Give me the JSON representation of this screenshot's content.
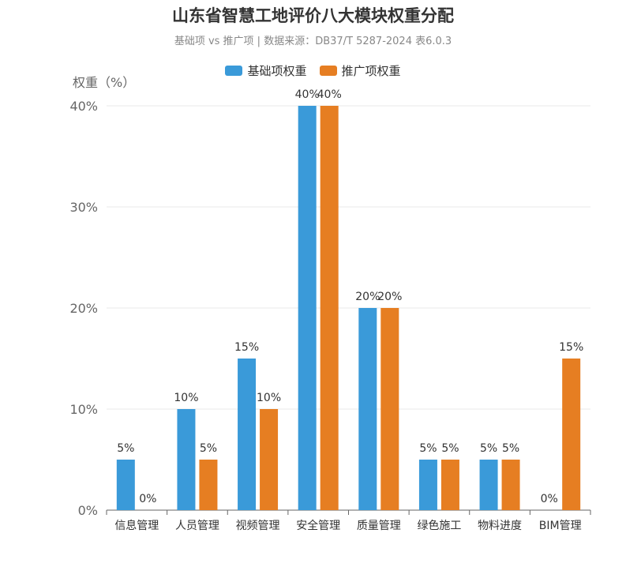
{
  "title": "山东省智慧工地评价八大模块权重分配",
  "subtitle": "基础项 vs 推广项 | 数据来源：DB37/T 5287-2024 表6.0.3",
  "legend": [
    {
      "name": "基础项权重",
      "color": "#3a9ad9"
    },
    {
      "name": "推广项权重",
      "color": "#e67e22"
    }
  ],
  "chart_data": {
    "type": "bar",
    "title": "山东省智慧工地评价八大模块权重分配",
    "ylabel": "权重（%）",
    "xlabel": "",
    "ylim": [
      0,
      40
    ],
    "yticks": [
      "0%",
      "10%",
      "20%",
      "30%",
      "40%"
    ],
    "ytick_values": [
      0,
      10,
      20,
      30,
      40
    ],
    "grid": true,
    "legend_position": "top-center",
    "categories": [
      "信息管理",
      "人员管理",
      "视频管理",
      "安全管理",
      "质量管理",
      "绿色施工",
      "物料进度",
      "BIM管理"
    ],
    "series": [
      {
        "name": "基础项权重",
        "color": "#3a9ad9",
        "values": [
          5,
          10,
          15,
          40,
          20,
          5,
          5,
          0
        ],
        "labels": [
          "5%",
          "10%",
          "15%",
          "40%",
          "20%",
          "5%",
          "5%",
          "0%"
        ]
      },
      {
        "name": "推广项权重",
        "color": "#e67e22",
        "values": [
          0,
          5,
          10,
          40,
          20,
          5,
          5,
          15
        ],
        "labels": [
          "0%",
          "5%",
          "10%",
          "40%",
          "20%",
          "5%",
          "5%",
          "15%"
        ]
      }
    ]
  }
}
